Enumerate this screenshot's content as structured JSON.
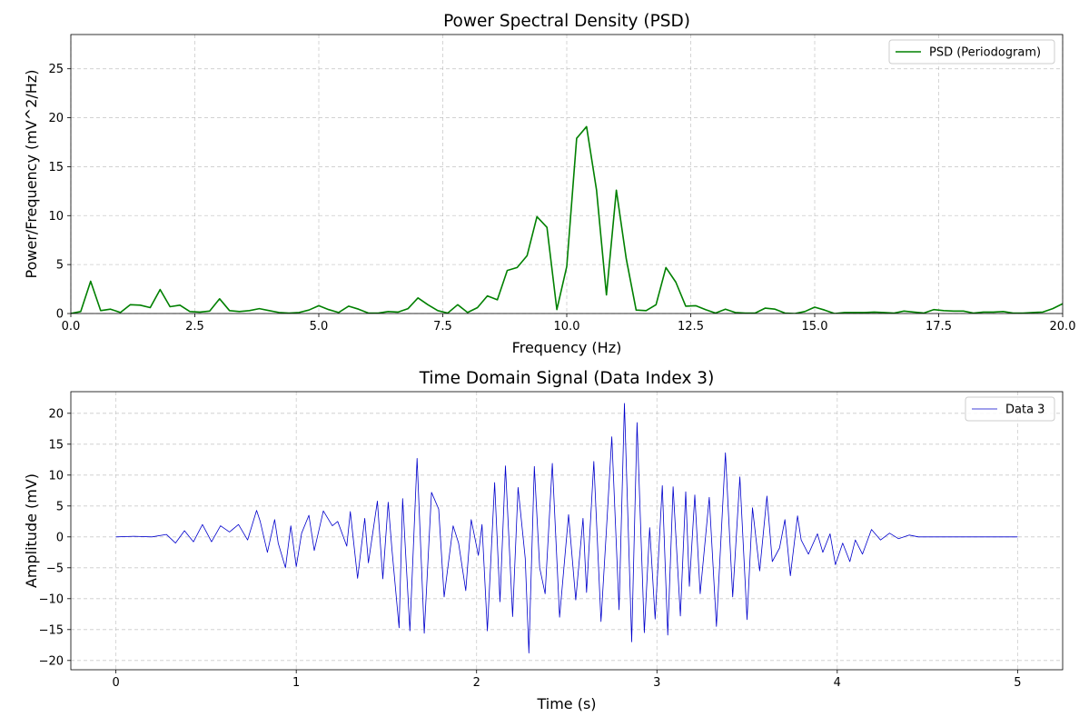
{
  "chart_data": [
    {
      "type": "line",
      "title": "Power Spectral Density (PSD)",
      "xlabel": "Frequency (Hz)",
      "ylabel": "Power/Frequency (mV^2/Hz)",
      "xlim": [
        0,
        20
      ],
      "ylim": [
        0,
        28.5
      ],
      "xticks": [
        0,
        2.5,
        5,
        7.5,
        10,
        12.5,
        15,
        17.5,
        20
      ],
      "xtick_labels": [
        "0.0",
        "2.5",
        "5.0",
        "7.5",
        "10.0",
        "12.5",
        "15.0",
        "17.5",
        "20.0"
      ],
      "yticks": [
        0,
        5,
        10,
        15,
        20,
        25
      ],
      "ytick_labels": [
        "0",
        "5",
        "10",
        "15",
        "20",
        "25"
      ],
      "grid": true,
      "legend_position": "top-right",
      "series": [
        {
          "name": "PSD (Periodogram)",
          "color": "#008000",
          "x": [
            0.0,
            0.2,
            0.4,
            0.6,
            0.8,
            1.0,
            1.2,
            1.4,
            1.6,
            1.8,
            2.0,
            2.2,
            2.4,
            2.6,
            2.8,
            3.0,
            3.2,
            3.4,
            3.6,
            3.8,
            4.0,
            4.2,
            4.4,
            4.6,
            4.8,
            5.0,
            5.2,
            5.4,
            5.6,
            5.8,
            6.0,
            6.2,
            6.4,
            6.6,
            6.8,
            7.0,
            7.2,
            7.4,
            7.6,
            7.8,
            8.0,
            8.2,
            8.4,
            8.6,
            8.8,
            9.0,
            9.2,
            9.4,
            9.6,
            9.8,
            10.0,
            10.2,
            10.4,
            10.6,
            10.8,
            11.0,
            11.2,
            11.4,
            11.6,
            11.8,
            12.0,
            12.2,
            12.4,
            12.6,
            12.8,
            13.0,
            13.2,
            13.4,
            13.6,
            13.8,
            14.0,
            14.2,
            14.4,
            14.6,
            14.8,
            15.0,
            15.2,
            15.4,
            15.6,
            15.8,
            16.0,
            16.2,
            16.4,
            16.6,
            16.8,
            17.0,
            17.2,
            17.4,
            17.6,
            17.8,
            18.0,
            18.2,
            18.4,
            18.6,
            18.8,
            19.0,
            19.2,
            19.4,
            19.6,
            19.8,
            20.0
          ],
          "values": [
            0.0,
            0.2,
            3.3,
            0.3,
            0.45,
            0.1,
            0.9,
            0.85,
            0.6,
            2.45,
            0.7,
            0.85,
            0.2,
            0.15,
            0.25,
            1.5,
            0.3,
            0.2,
            0.3,
            0.5,
            0.3,
            0.1,
            0.05,
            0.1,
            0.35,
            0.8,
            0.4,
            0.1,
            0.75,
            0.45,
            0.05,
            0.05,
            0.2,
            0.15,
            0.5,
            1.6,
            0.9,
            0.3,
            0.05,
            0.9,
            0.1,
            0.6,
            1.8,
            1.4,
            4.4,
            4.7,
            5.9,
            9.9,
            8.8,
            0.4,
            4.8,
            17.9,
            19.1,
            12.6,
            1.9,
            12.6,
            5.6,
            0.35,
            0.3,
            0.9,
            4.7,
            3.2,
            0.75,
            0.8,
            0.4,
            0.05,
            0.45,
            0.1,
            0.05,
            0.05,
            0.55,
            0.45,
            0.05,
            0.0,
            0.2,
            0.65,
            0.35,
            0.0,
            0.1,
            0.1,
            0.1,
            0.15,
            0.1,
            0.05,
            0.25,
            0.15,
            0.05,
            0.4,
            0.3,
            0.25,
            0.25,
            0.05,
            0.15,
            0.15,
            0.2,
            0.05,
            0.05,
            0.1,
            0.15,
            0.5,
            1.0
          ]
        }
      ]
    },
    {
      "type": "line",
      "title": "Time Domain Signal (Data Index 3)",
      "xlabel": "Time (s)",
      "ylabel": "Amplitude (mV)",
      "xlim": [
        -0.25,
        5.25
      ],
      "ylim": [
        -21.5,
        23.5
      ],
      "xticks": [
        0,
        1,
        2,
        3,
        4,
        5
      ],
      "xtick_labels": [
        "0",
        "1",
        "2",
        "3",
        "4",
        "5"
      ],
      "yticks": [
        -20,
        -15,
        -10,
        -5,
        0,
        5,
        10,
        15,
        20
      ],
      "ytick_labels": [
        "−20",
        "−15",
        "−10",
        "−5",
        "0",
        "5",
        "10",
        "15",
        "20"
      ],
      "grid": true,
      "legend_position": "top-right",
      "series": [
        {
          "name": "Data 3",
          "color": "#0000cc",
          "x": [
            0.0,
            0.1,
            0.2,
            0.28,
            0.33,
            0.38,
            0.43,
            0.48,
            0.53,
            0.58,
            0.63,
            0.68,
            0.73,
            0.78,
            0.8,
            0.84,
            0.88,
            0.9,
            0.94,
            0.97,
            1.0,
            1.03,
            1.07,
            1.1,
            1.15,
            1.2,
            1.23,
            1.28,
            1.3,
            1.34,
            1.38,
            1.4,
            1.45,
            1.48,
            1.51,
            1.53,
            1.57,
            1.59,
            1.63,
            1.67,
            1.71,
            1.75,
            1.79,
            1.82,
            1.87,
            1.9,
            1.94,
            1.97,
            2.01,
            2.03,
            2.06,
            2.1,
            2.13,
            2.16,
            2.2,
            2.23,
            2.27,
            2.29,
            2.32,
            2.35,
            2.38,
            2.42,
            2.46,
            2.51,
            2.55,
            2.59,
            2.61,
            2.65,
            2.69,
            2.72,
            2.75,
            2.79,
            2.82,
            2.86,
            2.89,
            2.93,
            2.96,
            2.99,
            3.03,
            3.06,
            3.09,
            3.13,
            3.16,
            3.18,
            3.21,
            3.24,
            3.29,
            3.33,
            3.38,
            3.42,
            3.46,
            3.5,
            3.53,
            3.57,
            3.61,
            3.64,
            3.68,
            3.71,
            3.74,
            3.78,
            3.8,
            3.84,
            3.89,
            3.92,
            3.96,
            3.99,
            4.03,
            4.07,
            4.1,
            4.14,
            4.19,
            4.24,
            4.29,
            4.34,
            4.4,
            4.45,
            4.5,
            4.55,
            4.6,
            4.7,
            4.8,
            4.9,
            5.0
          ],
          "values": [
            0,
            0.1,
            0,
            0.4,
            -1.0,
            1.0,
            -0.8,
            2.0,
            -0.8,
            1.8,
            0.8,
            2.0,
            -0.5,
            4.3,
            2.5,
            -2.5,
            2.8,
            -1.0,
            -5.0,
            1.8,
            -4.8,
            0.6,
            3.5,
            -2.2,
            4.2,
            1.8,
            2.5,
            -1.5,
            4.1,
            -6.7,
            3.0,
            -4.2,
            5.8,
            -6.8,
            5.6,
            -1.8,
            -14.7,
            6.2,
            -15.2,
            12.7,
            -15.6,
            7.2,
            4.5,
            -9.7,
            1.8,
            -1.0,
            -8.7,
            2.8,
            -3.0,
            2.0,
            -15.2,
            8.8,
            -10.5,
            11.5,
            -12.9,
            8.0,
            -3.5,
            -18.8,
            11.4,
            -5.0,
            -9.2,
            11.9,
            -13.0,
            3.6,
            -10.2,
            3.0,
            -9.0,
            12.2,
            -13.7,
            1.2,
            16.2,
            -11.8,
            21.6,
            -17.0,
            18.5,
            -15.5,
            1.5,
            -13.3,
            8.3,
            -15.9,
            8.1,
            -12.8,
            7.3,
            -8.0,
            6.8,
            -9.2,
            6.4,
            -14.5,
            13.6,
            -9.7,
            9.7,
            -13.4,
            4.7,
            -5.5,
            6.6,
            -4.0,
            -1.8,
            2.8,
            -6.3,
            3.4,
            -0.5,
            -2.8,
            0.5,
            -2.5,
            0.5,
            -4.5,
            -1.0,
            -4.0,
            -0.5,
            -2.8,
            1.2,
            -0.5,
            0.6,
            -0.3,
            0.3,
            0.0,
            0.0,
            0.0,
            0.0,
            0.0,
            0.0,
            0.0,
            0.0
          ]
        }
      ]
    }
  ]
}
